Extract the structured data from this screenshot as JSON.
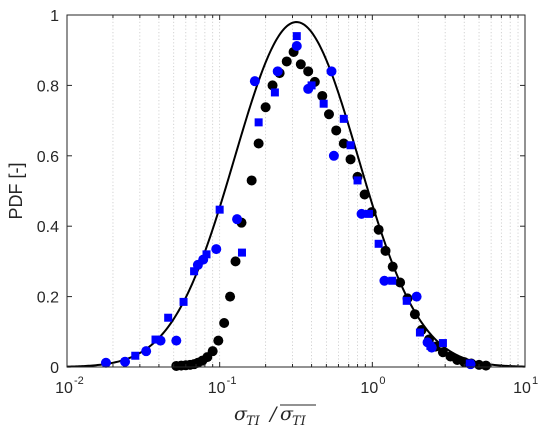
{
  "chart_data": {
    "type": "scatter",
    "title": "",
    "ylabel": "PDF [-]",
    "xlabel": "σTI / σTI (overlined)",
    "xlabel_parts": {
      "sigma": "σ",
      "sub": "TI"
    },
    "xscale": "log",
    "xlim": [
      0.01,
      10
    ],
    "ylim": [
      0,
      1
    ],
    "xticks": [
      {
        "base": "10",
        "exp": "-2",
        "value": 0.01
      },
      {
        "base": "10",
        "exp": "-1",
        "value": 0.1
      },
      {
        "base": "10",
        "exp": "0",
        "value": 1
      },
      {
        "base": "10",
        "exp": "1",
        "value": 10
      }
    ],
    "yticks": [
      "0",
      "0.2",
      "0.4",
      "0.6",
      "0.8",
      "1"
    ],
    "ytick_values": [
      0,
      0.2,
      0.4,
      0.6,
      0.8,
      1
    ],
    "grid": "vertical minor dotted",
    "series": [
      {
        "marker": "circle",
        "color": "#000000",
        "points": [
          [
            0.052,
            0.003
          ],
          [
            0.056,
            0.004
          ],
          [
            0.06,
            0.005
          ],
          [
            0.064,
            0.006
          ],
          [
            0.068,
            0.008
          ],
          [
            0.072,
            0.012
          ],
          [
            0.077,
            0.018
          ],
          [
            0.083,
            0.028
          ],
          [
            0.09,
            0.045
          ],
          [
            0.098,
            0.075
          ],
          [
            0.107,
            0.125
          ],
          [
            0.117,
            0.2
          ],
          [
            0.127,
            0.3
          ],
          [
            0.139,
            0.41
          ],
          [
            0.162,
            0.53
          ],
          [
            0.18,
            0.635
          ],
          [
            0.2,
            0.738
          ],
          [
            0.222,
            0.8
          ],
          [
            0.247,
            0.835
          ],
          [
            0.275,
            0.868
          ],
          [
            0.305,
            0.895
          ],
          [
            0.34,
            0.86
          ],
          [
            0.38,
            0.84
          ],
          [
            0.42,
            0.81
          ],
          [
            0.47,
            0.77
          ],
          [
            0.52,
            0.718
          ],
          [
            0.58,
            0.672
          ],
          [
            0.65,
            0.635
          ],
          [
            0.72,
            0.59
          ],
          [
            0.8,
            0.54
          ],
          [
            0.89,
            0.49
          ],
          [
            0.99,
            0.44
          ],
          [
            1.1,
            0.39
          ],
          [
            1.22,
            0.33
          ],
          [
            1.36,
            0.285
          ],
          [
            1.52,
            0.24
          ],
          [
            1.7,
            0.195
          ],
          [
            1.9,
            0.15
          ],
          [
            2.1,
            0.105
          ],
          [
            2.35,
            0.078
          ],
          [
            2.6,
            0.058
          ],
          [
            2.9,
            0.042
          ],
          [
            3.25,
            0.03
          ],
          [
            3.6,
            0.02
          ],
          [
            4.0,
            0.014
          ],
          [
            4.45,
            0.01
          ],
          [
            5.0,
            0.006
          ],
          [
            5.55,
            0.004
          ]
        ]
      },
      {
        "marker": "circle",
        "color": "#0000ff",
        "points": [
          [
            0.018,
            0.012
          ],
          [
            0.024,
            0.015
          ],
          [
            0.033,
            0.045
          ],
          [
            0.041,
            0.075
          ],
          [
            0.052,
            0.075
          ],
          [
            0.072,
            0.29
          ],
          [
            0.078,
            0.305
          ],
          [
            0.095,
            0.335
          ],
          [
            0.13,
            0.42
          ],
          [
            0.17,
            0.812
          ],
          [
            0.24,
            0.84
          ],
          [
            0.32,
            0.912
          ],
          [
            0.38,
            0.79
          ],
          [
            0.54,
            0.84
          ],
          [
            0.56,
            0.6
          ],
          [
            0.85,
            0.435
          ],
          [
            1.2,
            0.245
          ],
          [
            1.95,
            0.2
          ],
          [
            2.3,
            0.07
          ],
          [
            2.45,
            0.055
          ],
          [
            4.4,
            0.008
          ]
        ]
      },
      {
        "marker": "square",
        "color": "#0000ff",
        "points": [
          [
            0.028,
            0.032
          ],
          [
            0.038,
            0.078
          ],
          [
            0.046,
            0.14
          ],
          [
            0.058,
            0.185
          ],
          [
            0.068,
            0.272
          ],
          [
            0.082,
            0.32
          ],
          [
            0.1,
            0.447
          ],
          [
            0.14,
            0.325
          ],
          [
            0.18,
            0.695
          ],
          [
            0.23,
            0.78
          ],
          [
            0.32,
            0.94
          ],
          [
            0.4,
            0.8
          ],
          [
            0.48,
            0.748
          ],
          [
            0.65,
            0.705
          ],
          [
            0.72,
            0.63
          ],
          [
            0.8,
            0.53
          ],
          [
            0.95,
            0.435
          ],
          [
            1.1,
            0.35
          ],
          [
            1.35,
            0.245
          ],
          [
            1.68,
            0.188
          ],
          [
            2.05,
            0.098
          ],
          [
            2.4,
            0.06
          ],
          [
            2.9,
            0.068
          ],
          [
            4.35,
            0.01
          ]
        ]
      },
      {
        "marker": "line",
        "color": "#000000",
        "mu_log10": -0.497,
        "sigma_log10": 0.405,
        "curve_note": "smooth reference curve, peak ~0.98 at x≈0.32"
      }
    ]
  }
}
